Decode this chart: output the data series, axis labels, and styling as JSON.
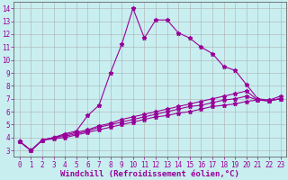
{
  "title": "",
  "xlabel": "Windchill (Refroidissement éolien,°C)",
  "bg_color": "#c8eef0",
  "line_color": "#990099",
  "grid_color": "#b0b0b0",
  "xlim": [
    -0.5,
    23.5
  ],
  "ylim": [
    2.5,
    14.5
  ],
  "xticks": [
    0,
    1,
    2,
    3,
    4,
    5,
    6,
    7,
    8,
    9,
    10,
    11,
    12,
    13,
    14,
    15,
    16,
    17,
    18,
    19,
    20,
    21,
    22,
    23
  ],
  "yticks": [
    3,
    4,
    5,
    6,
    7,
    8,
    9,
    10,
    11,
    12,
    13,
    14
  ],
  "line1_x": [
    0,
    1,
    2,
    3,
    4,
    5,
    6,
    7,
    8,
    9,
    10,
    11,
    12,
    13,
    14,
    15,
    16,
    17,
    18,
    19,
    20,
    21,
    22,
    23
  ],
  "line1_y": [
    3.7,
    3.0,
    3.8,
    4.0,
    4.3,
    4.5,
    5.7,
    6.5,
    9.0,
    11.2,
    14.0,
    11.7,
    13.1,
    13.1,
    12.1,
    11.7,
    11.0,
    10.5,
    9.5,
    9.2,
    8.1,
    7.0,
    6.9,
    7.2
  ],
  "line2_x": [
    0,
    1,
    2,
    3,
    4,
    5,
    6,
    7,
    8,
    9,
    10,
    11,
    12,
    13,
    14,
    15,
    16,
    17,
    18,
    19,
    20,
    21,
    22,
    23
  ],
  "line2_y": [
    3.7,
    3.0,
    3.8,
    4.0,
    4.2,
    4.4,
    4.6,
    4.9,
    5.1,
    5.4,
    5.6,
    5.8,
    6.0,
    6.2,
    6.4,
    6.6,
    6.8,
    7.0,
    7.2,
    7.4,
    7.6,
    6.9,
    6.85,
    7.0
  ],
  "line3_x": [
    0,
    1,
    2,
    3,
    4,
    5,
    6,
    7,
    8,
    9,
    10,
    11,
    12,
    13,
    14,
    15,
    16,
    17,
    18,
    19,
    20,
    21,
    22,
    23
  ],
  "line3_y": [
    3.7,
    3.0,
    3.8,
    4.0,
    4.1,
    4.3,
    4.5,
    4.8,
    5.0,
    5.2,
    5.4,
    5.6,
    5.8,
    6.0,
    6.2,
    6.4,
    6.5,
    6.7,
    6.9,
    7.0,
    7.2,
    6.9,
    6.85,
    7.0
  ],
  "line4_x": [
    0,
    1,
    2,
    3,
    4,
    5,
    6,
    7,
    8,
    9,
    10,
    11,
    12,
    13,
    14,
    15,
    16,
    17,
    18,
    19,
    20,
    21,
    22,
    23
  ],
  "line4_y": [
    3.7,
    3.0,
    3.8,
    3.9,
    4.0,
    4.2,
    4.4,
    4.6,
    4.8,
    5.0,
    5.2,
    5.4,
    5.6,
    5.7,
    5.9,
    6.0,
    6.2,
    6.4,
    6.5,
    6.6,
    6.8,
    6.9,
    6.85,
    7.0
  ],
  "xlabel_fontsize": 6.5,
  "tick_fontsize": 5.5,
  "marker": "*",
  "markersize": 3.5,
  "linewidth": 0.8
}
